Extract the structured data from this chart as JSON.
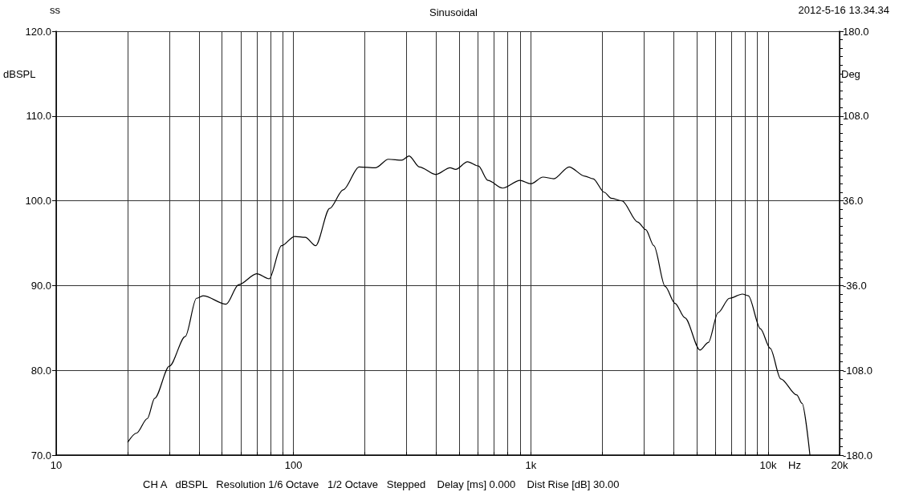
{
  "chart_data": {
    "type": "line",
    "title": "Sinusoidal",
    "xlabel": "Hz",
    "ylabel": "dBSPL",
    "y2label": "Deg",
    "annotations": [
      "ss",
      "2012-5-16 13.34.34",
      "CH A   dBSPL   Resolution 1/6 Octave   1/2 Octave   Stepped    Delay [ms] 0.000    Dist Rise [dB] 30.00"
    ],
    "x": [
      20,
      21.8,
      24.2,
      26,
      30,
      35,
      39,
      41.6,
      52,
      58.7,
      70,
      79,
      89,
      101,
      112,
      124,
      142,
      162,
      189,
      222,
      251,
      286,
      307,
      339,
      398,
      457,
      482,
      541,
      601,
      660,
      760,
      900,
      1000,
      1125,
      1250,
      1450,
      1690,
      1830,
      2040,
      2180,
      2420,
      2820,
      3050,
      3300,
      3680,
      4050,
      4460,
      5160,
      5600,
      6150,
      6870,
      7790,
      8250,
      9280,
      10200,
      11300,
      13200,
      13900,
      15000
    ],
    "series": [
      {
        "color": "#000000",
        "values": [
          71.5,
          72.6,
          74.3,
          76.7,
          80.5,
          84.0,
          88.5,
          88.8,
          87.8,
          90.1,
          91.4,
          90.8,
          94.7,
          95.8,
          95.7,
          94.7,
          99.1,
          101.3,
          104.0,
          103.9,
          104.9,
          104.8,
          105.3,
          104.0,
          103.1,
          103.9,
          103.7,
          104.6,
          104.1,
          102.4,
          101.5,
          102.4,
          102.0,
          102.8,
          102.6,
          104.0,
          102.9,
          102.6,
          101.0,
          100.3,
          100.0,
          97.5,
          96.6,
          94.7,
          89.9,
          87.9,
          86.2,
          82.4,
          83.3,
          86.8,
          88.5,
          89.0,
          88.8,
          84.9,
          82.6,
          79.0,
          77.1,
          76.1,
          70.0
        ]
      }
    ],
    "log": "x",
    "marker": "none",
    "line_style": "solid",
    "grid": true,
    "xlim": [
      10,
      20000
    ],
    "xticks": [
      {
        "value": 10,
        "label": "10"
      },
      {
        "value": 20,
        "label": null
      },
      {
        "value": 30,
        "label": null
      },
      {
        "value": 40,
        "label": null
      },
      {
        "value": 50,
        "label": null
      },
      {
        "value": 60,
        "label": null
      },
      {
        "value": 70,
        "label": null
      },
      {
        "value": 80,
        "label": null
      },
      {
        "value": 90,
        "label": null
      },
      {
        "value": 100,
        "label": "100"
      },
      {
        "value": 200,
        "label": null
      },
      {
        "value": 300,
        "label": null
      },
      {
        "value": 400,
        "label": null
      },
      {
        "value": 500,
        "label": null
      },
      {
        "value": 600,
        "label": null
      },
      {
        "value": 700,
        "label": null
      },
      {
        "value": 800,
        "label": null
      },
      {
        "value": 900,
        "label": null
      },
      {
        "value": 1000,
        "label": "1k"
      },
      {
        "value": 2000,
        "label": null
      },
      {
        "value": 3000,
        "label": null
      },
      {
        "value": 4000,
        "label": null
      },
      {
        "value": 5000,
        "label": null
      },
      {
        "value": 6000,
        "label": null
      },
      {
        "value": 7000,
        "label": null
      },
      {
        "value": 8000,
        "label": null
      },
      {
        "value": 9000,
        "label": null
      },
      {
        "value": 10000,
        "label": "10k"
      },
      {
        "value": 20000,
        "label": "20k"
      }
    ],
    "ylim": [
      70,
      120
    ],
    "yticks": [
      {
        "value": 70,
        "label": "70.0"
      },
      {
        "value": 80,
        "label": "80.0"
      },
      {
        "value": 90,
        "label": "90.0"
      },
      {
        "value": 100,
        "label": "100.0"
      },
      {
        "value": 110,
        "label": "110.0"
      },
      {
        "value": 120,
        "label": "120.0"
      }
    ],
    "y2lim": [
      -180,
      180
    ],
    "y2ticks": [
      {
        "value": -180,
        "label": "-180.0"
      },
      {
        "value": -108,
        "label": "-108.0"
      },
      {
        "value": -36,
        "label": "-36.0"
      },
      {
        "value": 36,
        "label": "36.0"
      },
      {
        "value": 108,
        "label": "108.0"
      },
      {
        "value": 180,
        "label": "180.0"
      }
    ]
  }
}
